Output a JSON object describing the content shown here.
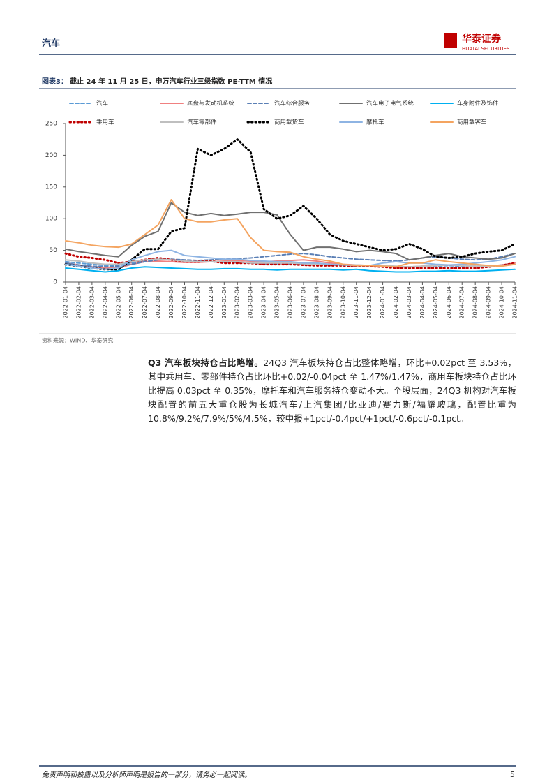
{
  "header": {
    "section": "汽车",
    "logo_cn": "华泰证券",
    "logo_en": "HUATAI SECURITIES"
  },
  "figure": {
    "label": "图表3：",
    "title": "截止 24 年 11 月 25 日，申万汽车行业三级指数 PE-TTM 情况",
    "source": "资料来源：WIND、华泰研究"
  },
  "chart_data": {
    "type": "line",
    "categories": [
      "2022-01-04",
      "2022-02-04",
      "2022-03-04",
      "2022-04-04",
      "2022-05-04",
      "2022-06-04",
      "2022-07-04",
      "2022-08-04",
      "2022-09-04",
      "2022-10-04",
      "2022-11-04",
      "2022-12-04",
      "2023-01-04",
      "2023-02-04",
      "2023-03-04",
      "2023-04-04",
      "2023-05-04",
      "2023-06-04",
      "2023-07-04",
      "2023-08-04",
      "2023-09-04",
      "2023-10-04",
      "2023-11-04",
      "2023-12-04",
      "2024-01-04",
      "2024-02-04",
      "2024-03-04",
      "2024-04-04",
      "2024-05-04",
      "2024-06-04",
      "2024-07-04",
      "2024-08-04",
      "2024-09-04",
      "2024-10-04",
      "2024-11-04"
    ],
    "ylim": [
      0,
      250
    ],
    "yticks": [
      0,
      50,
      100,
      150,
      200,
      250
    ],
    "series": [
      {
        "name": "汽车",
        "color": "#5b9bd5",
        "style": "dashed",
        "values": [
          32,
          30,
          28,
          26,
          26,
          30,
          34,
          36,
          35,
          33,
          32,
          32,
          31,
          31,
          30,
          29,
          29,
          29,
          28,
          28,
          27,
          27,
          26,
          26,
          25,
          24,
          24,
          25,
          25,
          26,
          25,
          25,
          25,
          27,
          30
        ]
      },
      {
        "name": "底盘与发动机系统",
        "color": "#f08080",
        "style": "solid",
        "values": [
          30,
          27,
          24,
          22,
          22,
          28,
          32,
          33,
          32,
          31,
          31,
          32,
          33,
          34,
          33,
          32,
          33,
          34,
          35,
          33,
          30,
          28,
          27,
          26,
          25,
          24,
          24,
          25,
          26,
          27,
          26,
          25,
          25,
          27,
          30
        ]
      },
      {
        "name": "汽车综合服务",
        "color": "#5a7fb5",
        "style": "dashed",
        "values": [
          30,
          27,
          25,
          24,
          25,
          28,
          32,
          35,
          36,
          35,
          34,
          35,
          36,
          37,
          38,
          40,
          42,
          44,
          45,
          43,
          40,
          38,
          36,
          35,
          34,
          33,
          35,
          38,
          40,
          38,
          36,
          35,
          36,
          40,
          45
        ]
      },
      {
        "name": "汽车电子电气系统",
        "color": "#707070",
        "style": "solid",
        "values": [
          52,
          48,
          45,
          42,
          40,
          58,
          72,
          80,
          125,
          110,
          105,
          108,
          105,
          107,
          110,
          110,
          106,
          75,
          50,
          55,
          55,
          52,
          48,
          50,
          48,
          45,
          35,
          38,
          42,
          45,
          40,
          38,
          36,
          38,
          45
        ]
      },
      {
        "name": "车身附件及饰件",
        "color": "#00b0f0",
        "style": "solid",
        "values": [
          22,
          20,
          18,
          16,
          18,
          22,
          24,
          23,
          22,
          21,
          20,
          20,
          21,
          21,
          20,
          20,
          19,
          20,
          20,
          20,
          20,
          19,
          20,
          18,
          17,
          16,
          16,
          17,
          17,
          18,
          17,
          17,
          18,
          19,
          20
        ]
      },
      {
        "name": "乘用车",
        "color": "#c00000",
        "style": "dotted",
        "values": [
          45,
          40,
          38,
          35,
          30,
          32,
          35,
          38,
          35,
          32,
          32,
          33,
          30,
          30,
          30,
          28,
          28,
          28,
          27,
          26,
          26,
          26,
          25,
          25,
          24,
          22,
          22,
          22,
          22,
          22,
          22,
          22,
          24,
          26,
          30
        ]
      },
      {
        "name": "汽车零部件",
        "color": "#bfbfbf",
        "style": "solid",
        "values": [
          35,
          33,
          30,
          28,
          28,
          32,
          35,
          36,
          35,
          33,
          32,
          32,
          32,
          32,
          30,
          30,
          30,
          30,
          29,
          28,
          28,
          27,
          27,
          26,
          26,
          25,
          24,
          25,
          26,
          27,
          26,
          25,
          25,
          26,
          28
        ]
      },
      {
        "name": "商用载货车",
        "color": "#000000",
        "style": "dotted",
        "values": [
          28,
          25,
          22,
          20,
          20,
          35,
          52,
          52,
          80,
          85,
          210,
          200,
          210,
          225,
          205,
          115,
          100,
          105,
          120,
          100,
          75,
          65,
          60,
          55,
          50,
          52,
          60,
          52,
          40,
          38,
          40,
          45,
          48,
          50,
          60
        ]
      },
      {
        "name": "摩托车",
        "color": "#8eb4e3",
        "style": "solid",
        "values": [
          28,
          25,
          22,
          20,
          22,
          35,
          42,
          48,
          50,
          42,
          40,
          38,
          36,
          36,
          34,
          33,
          32,
          32,
          30,
          30,
          28,
          27,
          26,
          26,
          30,
          32,
          30,
          30,
          28,
          27,
          28,
          30,
          32,
          35,
          40
        ]
      },
      {
        "name": "商用载客车",
        "color": "#f4a460",
        "style": "solid",
        "values": [
          65,
          62,
          58,
          56,
          55,
          60,
          75,
          90,
          130,
          100,
          95,
          95,
          98,
          100,
          70,
          50,
          48,
          47,
          40,
          36,
          33,
          28,
          26,
          26,
          25,
          24,
          30,
          30,
          35,
          32,
          30,
          28,
          26,
          25,
          28
        ]
      }
    ]
  },
  "body": {
    "lead": "Q3 汽车板块持仓占比略增。",
    "text": "24Q3 汽车板块持仓占比整体略增，环比+0.02pct 至 3.53%，其中乘用车、零部件持仓占比环比+0.02/-0.04pct 至 1.47%/1.47%，商用车板块持仓占比环比提高 0.03pct 至 0.35%，摩托车和汽车服务持仓变动不大。个股层面，24Q3 机构对汽车板块配置的前五大重仓股为长城汽车/上汽集团/比亚迪/赛力斯/福耀玻璃，配置比重为 10.8%/9.2%/7.9%/5%/4.5%，较中报+1pct/-0.4pct/+1pct/-0.6pct/-0.1pct。"
  },
  "footer": {
    "disclaimer": "免责声明和披露以及分析师声明是报告的一部分，请务必一起阅读。",
    "page": "5"
  }
}
